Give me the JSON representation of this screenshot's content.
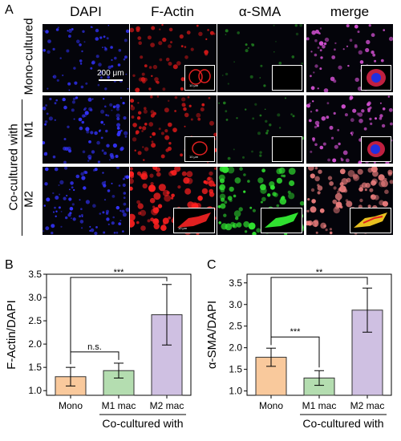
{
  "figure_a": {
    "letter": "A",
    "columns": [
      "DAPI",
      "F-Actin",
      "α-SMA",
      "merge"
    ],
    "rows": [
      "Mono-cultured",
      "M1",
      "M2"
    ],
    "group_label": "Co-cultured with",
    "scale_bar": "200 μm",
    "inset_scale": "10 μm",
    "colors": {
      "dapi": "#2a2cf0",
      "actin": "#f01e1e",
      "sma": "#28d028",
      "merge": "#e060e0"
    }
  },
  "figure_b": {
    "letter": "B",
    "significance": [
      "***",
      "n.s."
    ]
  },
  "figure_c": {
    "letter": "C",
    "significance": [
      "***",
      "**"
    ]
  },
  "chart_data": [
    {
      "type": "bar",
      "ylabel": "F-Actin/DAPI",
      "categories": [
        "Mono",
        "M1 mac",
        "M2 mac"
      ],
      "values": [
        1.3,
        1.43,
        2.63
      ],
      "errors": [
        0.2,
        0.16,
        0.65
      ],
      "colors": [
        "#f9c99c",
        "#b4ddb0",
        "#cfc0e2"
      ],
      "ylim": [
        0.9,
        3.5
      ],
      "yticks": [
        "1.0",
        "1.5",
        "2.0",
        "2.5",
        "3.0",
        "3.5"
      ],
      "ytick_values": [
        1.0,
        1.5,
        2.0,
        2.5,
        3.0,
        3.5
      ],
      "group_label": "Co-cultured with",
      "annotations": [
        {
          "from": 0,
          "to": 2,
          "text": "***"
        },
        {
          "from": 0,
          "to": 1,
          "text": "n.s."
        }
      ]
    },
    {
      "type": "bar",
      "ylabel": "α-SMA/DAPI",
      "categories": [
        "Mono",
        "M1 mac",
        "M2 mac"
      ],
      "values": [
        1.78,
        1.3,
        2.87
      ],
      "errors": [
        0.21,
        0.17,
        0.51
      ],
      "colors": [
        "#f9c99c",
        "#b4ddb0",
        "#cfc0e2"
      ],
      "ylim": [
        0.9,
        3.7
      ],
      "yticks": [
        "1.0",
        "1.5",
        "2.0",
        "2.5",
        "3.0",
        "3.5"
      ],
      "ytick_values": [
        1.0,
        1.5,
        2.0,
        2.5,
        3.0,
        3.5
      ],
      "group_label": "Co-cultured with",
      "annotations": [
        {
          "from": 0,
          "to": 1,
          "text": "***"
        },
        {
          "from": 0,
          "to": 2,
          "text": "**"
        }
      ]
    }
  ]
}
